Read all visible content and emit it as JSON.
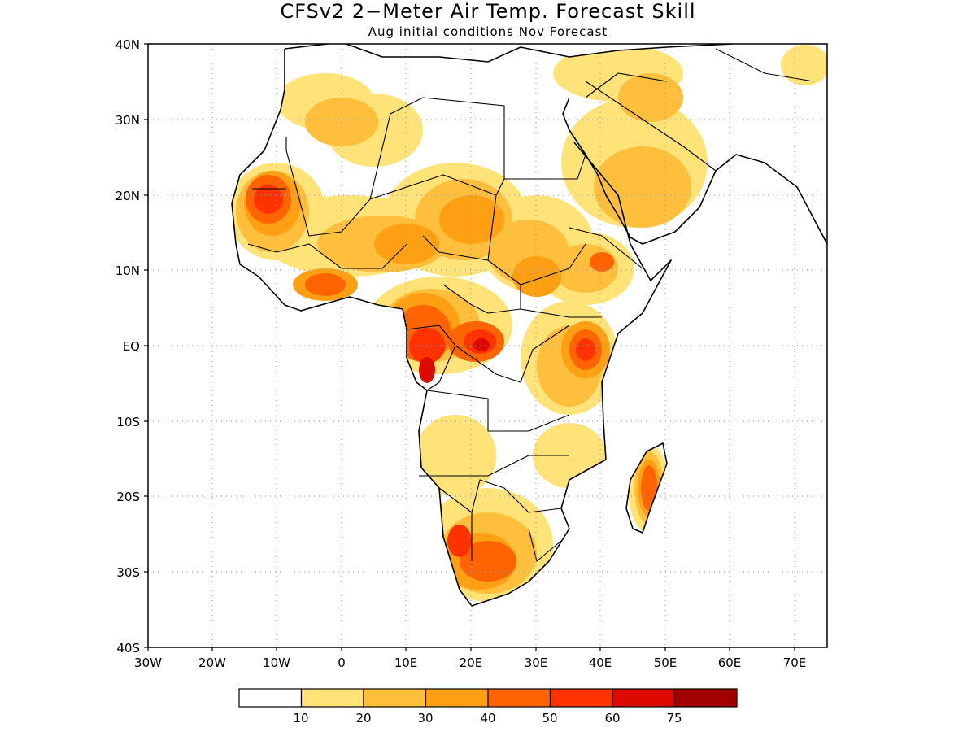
{
  "title": "CFSv2 2−Meter Air Temp. Forecast Skill",
  "subtitle": "Aug initial conditions  Nov Forecast",
  "axes": {
    "lat_labels": [
      "40N",
      "30N",
      "20N",
      "10N",
      "EQ",
      "10S",
      "20S",
      "30S",
      "40S"
    ],
    "lon_labels": [
      "30W",
      "20W",
      "10W",
      "0",
      "10E",
      "20E",
      "30E",
      "40E",
      "50E",
      "60E",
      "70E"
    ]
  },
  "colorbar": {
    "labels": [
      "10",
      "20",
      "30",
      "40",
      "50",
      "60",
      "75"
    ],
    "colors": [
      "#ffffff",
      "#ffe278",
      "#ffbe3c",
      "#ffa014",
      "#ff6400",
      "#ff3200",
      "#dc0a00",
      "#a00000"
    ]
  }
}
